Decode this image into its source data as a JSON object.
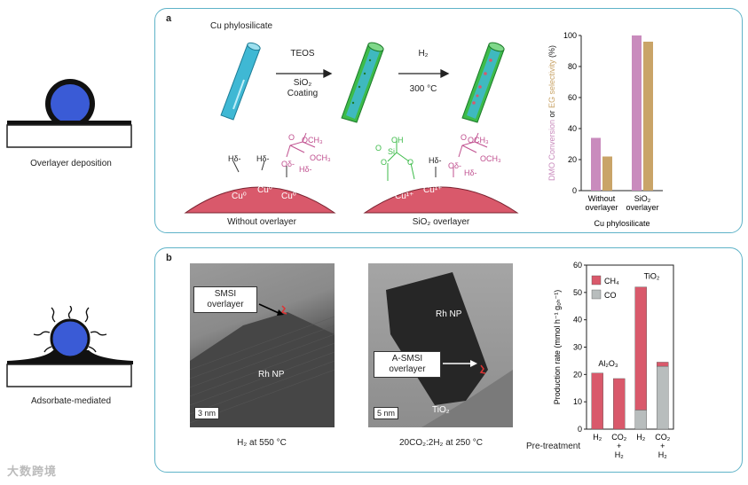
{
  "left_schematics": {
    "overlayer_label": "Overlayer deposition",
    "adsorbate_label": "Adsorbate-mediated"
  },
  "panel_a": {
    "tag": "a",
    "cu_phylosilicate_title": "Cu phylosilicate",
    "step1_reagent": "TEOS",
    "step1_sub1": "SiO₂",
    "step1_sub2": "Coating",
    "step2_reagent": "H₂",
    "step2_temp": "300 °C",
    "without_overlayer_label": "Without overlayer",
    "sio2_overlayer_label": "SiO₂ overlayer",
    "chem_left": {
      "h_labels": [
        "Hδ-",
        "Hδ-"
      ],
      "cu_labels": [
        "Cu⁰",
        "Cu⁰",
        "Cu⁰"
      ],
      "ester_o": "O",
      "ester_och3": "OCH₃",
      "ester_och3_2": "OCH₃",
      "ester_o_delta": "Oδ-",
      "ester_h_delta": "Hδ-"
    },
    "chem_right": {
      "si": "Si",
      "oh": "OH",
      "o_labels": [
        "O",
        "O",
        "O"
      ],
      "h_delta": "Hδ-",
      "cu_labels": [
        "Cu¹⁺",
        "Cu¹⁺"
      ],
      "ester_o": "O",
      "ester_och3": "OCH₃",
      "ester_och3_2": "OCH₃",
      "ester_o_delta": "Oδ-",
      "ester_h_delta": "Hδ-"
    },
    "colors": {
      "rod": "#3fb8d4",
      "coating": "#3dbb4a",
      "cu_surface": "#d9596b",
      "ester": "#c0508f",
      "silanol": "#3dbb4a"
    }
  },
  "chart_a": {
    "type": "bar",
    "ylabel_part1": "DMO Conversion",
    "ylabel_or": " or ",
    "ylabel_part2": "EG selectivity",
    "ylabel_unit": " (%)",
    "ylim": [
      0,
      100
    ],
    "yticks": [
      "0",
      "20",
      "40",
      "60",
      "80",
      "100"
    ],
    "categories": [
      {
        "line1": "Without",
        "line2": "overlayer"
      },
      {
        "line1": "SiO₂",
        "line2": "overlayer"
      }
    ],
    "series": [
      {
        "key": "conversion",
        "color": "#c98bbd",
        "values": [
          34,
          100
        ]
      },
      {
        "key": "selectivity",
        "color": "#c9a468",
        "values": [
          22,
          96
        ]
      }
    ],
    "xlabel": "Cu phylosilicate"
  },
  "panel_b": {
    "tag": "b",
    "tem1": {
      "callout_line1": "SMSI",
      "callout_line2": "overlayer",
      "np_label": "Rh NP",
      "scale": "3 nm",
      "caption": "H₂ at 550 °C"
    },
    "tem2": {
      "np_label": "Rh NP",
      "callout_line1": "A-SMSI",
      "callout_line2": "overlayer",
      "support_label": "TiO₂",
      "scale": "5 nm",
      "caption": "20CO₂:2H₂ at 250 °C"
    },
    "pretreatment_label": "Pre-treatment"
  },
  "chart_b": {
    "type": "bar",
    "ylabel": "Production rate (mmol h⁻¹ g₀ₕ⁻¹)",
    "ylim": [
      0,
      60
    ],
    "yticks": [
      "0",
      "10",
      "20",
      "30",
      "40",
      "50",
      "60"
    ],
    "legend": [
      {
        "label": "CH₄",
        "color": "#d9596b"
      },
      {
        "label": "CO",
        "color": "#b8bdbd"
      }
    ],
    "group_labels": [
      "Al₂O₃",
      "TiO₂"
    ],
    "categories": [
      {
        "line1": "H₂",
        "line2": "",
        "line3": ""
      },
      {
        "line1": "CO₂",
        "line2": "+",
        "line3": "H₂"
      },
      {
        "line1": "H₂",
        "line2": "",
        "line3": ""
      },
      {
        "line1": "CO₂",
        "line2": "+",
        "line3": "H₂"
      }
    ],
    "series": [
      {
        "name": "CH₄",
        "values": [
          20.5,
          18.5,
          45,
          1.5
        ]
      },
      {
        "name": "CO",
        "values": [
          0,
          0,
          7,
          23
        ]
      }
    ]
  },
  "watermark": "大数跨境"
}
